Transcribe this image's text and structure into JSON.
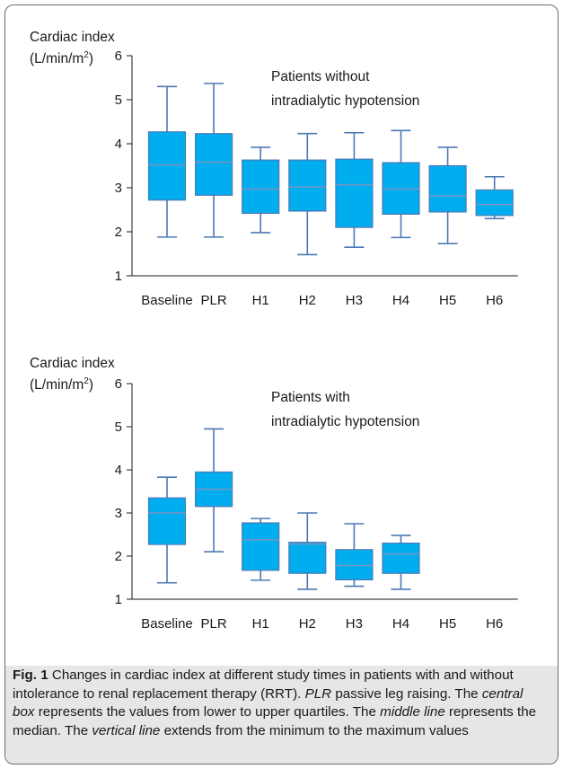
{
  "chart_data": [
    {
      "type": "box",
      "ylabel_line1": "Cardiac index",
      "ylabel_line2": "(L/min/m",
      "ylabel_sup": "2",
      "ylabel_close": ")",
      "annotation": [
        "Patients without",
        "intradialytic hypotension"
      ],
      "ylim": [
        1,
        6
      ],
      "yticks": [
        1,
        2,
        3,
        4,
        5,
        6
      ],
      "categories": [
        "Baseline",
        "PLR",
        "H1",
        "H2",
        "H3",
        "H4",
        "H5",
        "H6"
      ],
      "boxes": [
        {
          "min": 1.88,
          "q1": 2.72,
          "median": 3.52,
          "q3": 4.27,
          "max": 5.3
        },
        {
          "min": 1.88,
          "q1": 2.83,
          "median": 3.58,
          "q3": 4.23,
          "max": 5.37
        },
        {
          "min": 1.98,
          "q1": 2.42,
          "median": 2.97,
          "q3": 3.63,
          "max": 3.92
        },
        {
          "min": 1.48,
          "q1": 2.47,
          "median": 3.02,
          "q3": 3.63,
          "max": 4.23
        },
        {
          "min": 1.65,
          "q1": 2.1,
          "median": 3.07,
          "q3": 3.65,
          "max": 4.25
        },
        {
          "min": 1.87,
          "q1": 2.4,
          "median": 2.97,
          "q3": 3.57,
          "max": 4.3
        },
        {
          "min": 1.73,
          "q1": 2.45,
          "median": 2.82,
          "q3": 3.5,
          "max": 3.92
        },
        {
          "min": 2.3,
          "q1": 2.37,
          "median": 2.62,
          "q3": 2.95,
          "max": 3.25
        }
      ]
    },
    {
      "type": "box",
      "ylabel_line1": "Cardiac index",
      "ylabel_line2": "(L/min/m",
      "ylabel_sup": "2",
      "ylabel_close": ")",
      "annotation": [
        "Patients with",
        "intradialytic hypotension"
      ],
      "ylim": [
        1,
        6
      ],
      "yticks": [
        1,
        2,
        3,
        4,
        5,
        6
      ],
      "categories": [
        "Baseline",
        "PLR",
        "H1",
        "H2",
        "H3",
        "H4",
        "H5",
        "H6"
      ],
      "boxes": [
        {
          "min": 1.38,
          "q1": 2.27,
          "median": 3.0,
          "q3": 3.35,
          "max": 3.83
        },
        {
          "min": 2.1,
          "q1": 3.15,
          "median": 3.55,
          "q3": 3.95,
          "max": 4.95
        },
        {
          "min": 1.44,
          "q1": 1.67,
          "median": 2.38,
          "q3": 2.77,
          "max": 2.87
        },
        {
          "min": 1.23,
          "q1": 1.6,
          "median": 2.28,
          "q3": 2.32,
          "max": 3.0
        },
        {
          "min": 1.3,
          "q1": 1.45,
          "median": 1.78,
          "q3": 2.15,
          "max": 2.75
        },
        {
          "min": 1.23,
          "q1": 1.6,
          "median": 2.05,
          "q3": 2.3,
          "max": 2.48
        },
        null,
        null
      ]
    }
  ],
  "caption": {
    "fig_label": "Fig. 1",
    "text_1": "  Changes in cardiac index at different study times in patients with and without intolerance to renal replacement therapy (RRT). ",
    "em_1": "PLR",
    "text_2": " passive leg raising. The ",
    "em_2": "central box",
    "text_3": " represents the values from lower to upper quartiles. The ",
    "em_3": "middle line",
    "text_4": " represents the median. The ",
    "em_4": "vertical line",
    "text_5": " extends from the minimum to the maximum values"
  },
  "colors": {
    "box_fill": "#00aeef",
    "box_stroke": "#4d79b5",
    "whisker": "#4d79b5",
    "median_line": "#7a93bf",
    "axis": "#1a1a1a",
    "caption_bg": "#e6e6e6"
  }
}
